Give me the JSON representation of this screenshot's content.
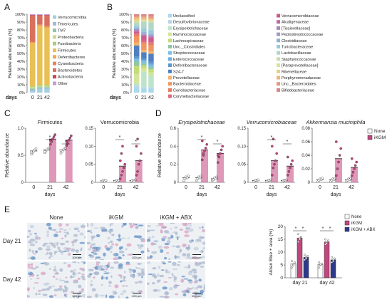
{
  "panel_letters": [
    "A",
    "B",
    "C",
    "D",
    "E"
  ],
  "colors": {
    "none": "#ffffff",
    "ikgm": "#c2467e",
    "abx": "#2d3a8c",
    "stroke": "#444444"
  },
  "micrograph": {
    "col_labels": [
      "None",
      "iKGM",
      "iKGM + ABX"
    ],
    "row_labels": [
      "Day 21",
      "Day 42"
    ],
    "scale_label": "100 μm"
  },
  "chart_data": [
    {
      "id": "A",
      "type": "bar",
      "stacked": true,
      "ylabel": "Relative abundance (%)",
      "xlabel": "days",
      "categories": [
        "0",
        "21",
        "42"
      ],
      "yticks": [
        "0%",
        "10%",
        "20%",
        "30%",
        "40%",
        "50%",
        "60%",
        "70%",
        "80%",
        "90%",
        "100%"
      ],
      "series": [
        {
          "name": "Verrucomicrobia",
          "color": "#a4cfe3",
          "values": [
            2,
            5,
            5
          ]
        },
        {
          "name": "Tenericutes",
          "color": "#9fbbd8",
          "values": [
            2,
            1,
            1
          ]
        },
        {
          "name": "TM7",
          "color": "#8fc4b0",
          "values": [
            1,
            1,
            1
          ]
        },
        {
          "name": "Proteobacteria",
          "color": "#c6dc8c",
          "values": [
            2,
            2,
            2
          ]
        },
        {
          "name": "Fusobacteria",
          "color": "#a8cc7a",
          "values": [
            1,
            1,
            1
          ]
        },
        {
          "name": "Firmicutes",
          "color": "#e9c055",
          "values": [
            55,
            75,
            72
          ]
        },
        {
          "name": "Deferribacteres",
          "color": "#f0a84a",
          "values": [
            1,
            1,
            2
          ]
        },
        {
          "name": "Cyanobacteria",
          "color": "#e8835a",
          "values": [
            1,
            1,
            1
          ]
        },
        {
          "name": "Bacteroidetes",
          "color": "#d9705e",
          "values": [
            33,
            11,
            13
          ]
        },
        {
          "name": "Actinobacteria",
          "color": "#c8484e",
          "values": [
            1,
            1,
            1
          ]
        },
        {
          "name": "Other",
          "color": "#c89bd2",
          "values": [
            1,
            1,
            1
          ]
        }
      ]
    },
    {
      "id": "B",
      "type": "bar",
      "stacked": true,
      "ylabel": "Relative abundance (%)",
      "xlabel": "days",
      "categories": [
        "0",
        "21",
        "42"
      ],
      "yticks": [
        "0%",
        "10%",
        "20%",
        "30%",
        "40%",
        "50%",
        "60%",
        "70%",
        "80%",
        "90%",
        "100%"
      ],
      "series": [
        {
          "name": "Unclassified",
          "color": "#a8d8ec",
          "values": [
            5,
            5,
            5
          ]
        },
        {
          "name": "Desulfovibrionaceae",
          "color": "#b7d4ea",
          "values": [
            3,
            2,
            2
          ]
        },
        {
          "name": "Erysipelotrichaceae",
          "color": "#bde3c9",
          "values": [
            4,
            20,
            15
          ]
        },
        {
          "name": "Ruminococcaceae",
          "color": "#d4e59a",
          "values": [
            12,
            4,
            4
          ]
        },
        {
          "name": "Lachnospiraceae",
          "color": "#c2dc78",
          "values": [
            10,
            4,
            4
          ]
        },
        {
          "name": "Unc._Clostridiales",
          "color": "#8fc6a4",
          "values": [
            6,
            3,
            3
          ]
        },
        {
          "name": "Streptococcaceae",
          "color": "#7cc0e6",
          "values": [
            2,
            2,
            2
          ]
        },
        {
          "name": "Enterococcaceae",
          "color": "#6eaede",
          "values": [
            2,
            2,
            2
          ]
        },
        {
          "name": "Deferribacteraceae",
          "color": "#5b96cd",
          "values": [
            2,
            2,
            3
          ]
        },
        {
          "name": "S24-7",
          "color": "#4f7fc0",
          "values": [
            14,
            8,
            10
          ]
        },
        {
          "name": "Prevotellaceae",
          "color": "#f4b26a",
          "values": [
            4,
            3,
            3
          ]
        },
        {
          "name": "Bacteroidaceae",
          "color": "#f09660",
          "values": [
            8,
            8,
            8
          ]
        },
        {
          "name": "Coriobacteriaceae",
          "color": "#e97a5e",
          "values": [
            2,
            2,
            2
          ]
        },
        {
          "name": "Corynebacteriaceae",
          "color": "#de6c7c",
          "values": [
            2,
            2,
            2
          ]
        },
        {
          "name": "Verrucomicrobiaceae",
          "color": "#cc5d8d",
          "values": [
            2,
            6,
            6
          ]
        },
        {
          "name": "Alcaligenaceae",
          "color": "#b96ca6",
          "values": [
            1,
            1,
            1
          ]
        },
        {
          "name": "[Tissierellaceae]",
          "color": "#a78ab8",
          "values": [
            1,
            1,
            1
          ]
        },
        {
          "name": "Peptostreptococcaceae",
          "color": "#9d9ccc",
          "values": [
            1,
            1,
            1
          ]
        },
        {
          "name": "Clostridiaceae",
          "color": "#8fb0d6",
          "values": [
            2,
            2,
            2
          ]
        },
        {
          "name": "Turicibacteraceae",
          "color": "#9ccad9",
          "values": [
            2,
            5,
            5
          ]
        },
        {
          "name": "Lactobacillaceae",
          "color": "#b2d7c6",
          "values": [
            4,
            8,
            9
          ]
        },
        {
          "name": "Staphylococcaceae",
          "color": "#c6deac",
          "values": [
            1,
            1,
            1
          ]
        },
        {
          "name": "[Paraprevotellaceae]",
          "color": "#d8e29a",
          "values": [
            1,
            1,
            1
          ]
        },
        {
          "name": "Rikenellaceae",
          "color": "#e7d08c",
          "values": [
            3,
            2,
            2
          ]
        },
        {
          "name": "Porphyromonadaceae",
          "color": "#ecb67d",
          "values": [
            2,
            2,
            2
          ]
        },
        {
          "name": "Unc._Bacteroidales",
          "color": "#e49a7a",
          "values": [
            2,
            2,
            2
          ]
        },
        {
          "name": "Bifidobacteriaceae",
          "color": "#d88686",
          "values": [
            2,
            2,
            3
          ]
        }
      ]
    },
    {
      "id": "C1",
      "type": "scatter",
      "title": "Firmicutes",
      "ylabel": "Relative abundance",
      "xlabel": "days",
      "categories": [
        "0",
        "21",
        "42"
      ],
      "ylim": [
        0,
        1.0
      ],
      "yticks": [
        "0",
        "0.5",
        "1.0"
      ],
      "series": [
        {
          "group": "None",
          "means": [
            0.58,
            0.6,
            0.6
          ],
          "points": [
            [
              0.52,
              0.55,
              0.58,
              0.6,
              0.62,
              0.56
            ],
            [
              0.55,
              0.58,
              0.6,
              0.62,
              0.64,
              0.57
            ],
            [
              0.54,
              0.57,
              0.6,
              0.62,
              0.63,
              0.59
            ]
          ]
        },
        {
          "group": "iKGM",
          "means": [
            null,
            0.8,
            0.78
          ],
          "points": [
            [],
            [
              0.7,
              0.75,
              0.8,
              0.84,
              0.88,
              0.78
            ],
            [
              0.68,
              0.72,
              0.78,
              0.82,
              0.86,
              0.76
            ]
          ]
        }
      ],
      "annotations": [
        "*",
        "*"
      ]
    },
    {
      "id": "C2",
      "type": "scatter",
      "title": "Verrucomicrobia",
      "xlabel": "days",
      "categories": [
        "0",
        "21",
        "42"
      ],
      "ylim": [
        0,
        0.15
      ],
      "yticks": [
        "0",
        "0.05",
        "0.10",
        "0.15"
      ],
      "series": [
        {
          "group": "None",
          "means": [
            0.004,
            0.005,
            0.005
          ],
          "points": [
            [
              0.002,
              0.004,
              0.006,
              0.003,
              0.005
            ],
            [
              0.002,
              0.004,
              0.006,
              0.003,
              0.006
            ],
            [
              0.002,
              0.004,
              0.006,
              0.003,
              0.007
            ]
          ]
        },
        {
          "group": "iKGM",
          "means": [
            null,
            0.045,
            0.06
          ],
          "points": [
            [],
            [
              0.01,
              0.02,
              0.03,
              0.04,
              0.05,
              0.06,
              0.08,
              0.1
            ],
            [
              0.02,
              0.03,
              0.05,
              0.06,
              0.08,
              0.1,
              0.12
            ]
          ]
        }
      ],
      "annotations": [
        "*",
        "*"
      ]
    },
    {
      "id": "D1",
      "type": "scatter",
      "title": "Erysipelotrichaceae",
      "ylabel": "Relative abundance",
      "xlabel": "days",
      "categories": [
        "0",
        "21",
        "42"
      ],
      "ylim": [
        0,
        0.6
      ],
      "yticks": [
        "0",
        "0.2",
        "0.4",
        "0.6"
      ],
      "series": [
        {
          "group": "None",
          "means": [
            0.05,
            0.05,
            0.04
          ],
          "points": [
            [
              0.02,
              0.04,
              0.06,
              0.05,
              0.07
            ],
            [
              0.02,
              0.04,
              0.06,
              0.05,
              0.07
            ],
            [
              0.02,
              0.03,
              0.05,
              0.04,
              0.06
            ]
          ]
        },
        {
          "group": "iKGM",
          "means": [
            null,
            0.36,
            0.32
          ],
          "points": [
            [],
            [
              0.25,
              0.3,
              0.35,
              0.38,
              0.42,
              0.46,
              0.32
            ],
            [
              0.22,
              0.28,
              0.32,
              0.36,
              0.4,
              0.3
            ]
          ]
        }
      ],
      "annotations": [
        "*",
        "*"
      ]
    },
    {
      "id": "D2",
      "type": "scatter",
      "title": "Verrucomicrobiaceae",
      "xlabel": "days",
      "categories": [
        "0",
        "21",
        "42"
      ],
      "ylim": [
        0,
        0.15
      ],
      "yticks": [
        "0",
        "0.05",
        "0.10",
        "0.15"
      ],
      "series": [
        {
          "group": "None",
          "means": [
            0.005,
            0.005,
            0.005
          ],
          "points": [
            [
              0.002,
              0.004,
              0.006,
              0.005,
              0.007
            ],
            [
              0.002,
              0.004,
              0.006,
              0.005,
              0.007
            ],
            [
              0.002,
              0.004,
              0.006,
              0.005,
              0.007
            ]
          ]
        },
        {
          "group": "iKGM",
          "means": [
            null,
            0.06,
            0.045
          ],
          "points": [
            [],
            [
              0.02,
              0.04,
              0.05,
              0.06,
              0.08,
              0.1,
              0.12
            ],
            [
              0.02,
              0.03,
              0.04,
              0.05,
              0.06,
              0.07
            ]
          ]
        }
      ],
      "annotations": [
        "*",
        "*"
      ]
    },
    {
      "id": "D3",
      "type": "scatter",
      "title": "Akkermansia muciniphila",
      "xlabel": "days",
      "categories": [
        "0",
        "21",
        "42"
      ],
      "ylim": [
        0,
        0.08
      ],
      "yticks": [
        "0",
        "0.02",
        "0.04",
        "0.06",
        "0.08"
      ],
      "legend": [
        "None",
        "iKGM"
      ],
      "series": [
        {
          "group": "None",
          "means": [
            0.004,
            0.004,
            0.004
          ],
          "points": [
            [
              0.001,
              0.003,
              0.005,
              0.004,
              0.006
            ],
            [
              0.001,
              0.003,
              0.005,
              0.004,
              0.006
            ],
            [
              0.001,
              0.003,
              0.005,
              0.004,
              0.006
            ]
          ]
        },
        {
          "group": "iKGM",
          "means": [
            null,
            0.035,
            0.022
          ],
          "points": [
            [],
            [
              0.01,
              0.02,
              0.03,
              0.04,
              0.05,
              0.06
            ],
            [
              0.01,
              0.015,
              0.02,
              0.025,
              0.03,
              0.035
            ]
          ]
        }
      ],
      "annotations": []
    },
    {
      "id": "E-bar",
      "type": "bar",
      "ylabel": "Alcian Blue + area (%)",
      "categories": [
        "day 21",
        "day 42"
      ],
      "ylim": [
        0,
        20
      ],
      "yticks": [
        "0",
        "5",
        "10",
        "15",
        "20"
      ],
      "legend": [
        "None",
        "iKGM",
        "iKGM + ABX"
      ],
      "series": [
        {
          "name": "None",
          "values": [
            5.5,
            5.2
          ],
          "points": [
            [
              4,
              5,
              6,
              6.5,
              5
            ],
            [
              4,
              5,
              5.5,
              6,
              5.2
            ]
          ]
        },
        {
          "name": "iKGM",
          "values": [
            15.5,
            14
          ],
          "points": [
            [
              14,
              15,
              16,
              17,
              15.5
            ],
            [
              13,
              14,
              14.5,
              15,
              13.5
            ]
          ]
        },
        {
          "name": "iKGM + ABX",
          "values": [
            8,
            7
          ],
          "points": [
            [
              7,
              8,
              8.5,
              9,
              7.5
            ],
            [
              6,
              7,
              7.5,
              8,
              6.5
            ]
          ]
        }
      ],
      "annotations": [
        "*",
        "*",
        "*",
        "*"
      ]
    }
  ]
}
